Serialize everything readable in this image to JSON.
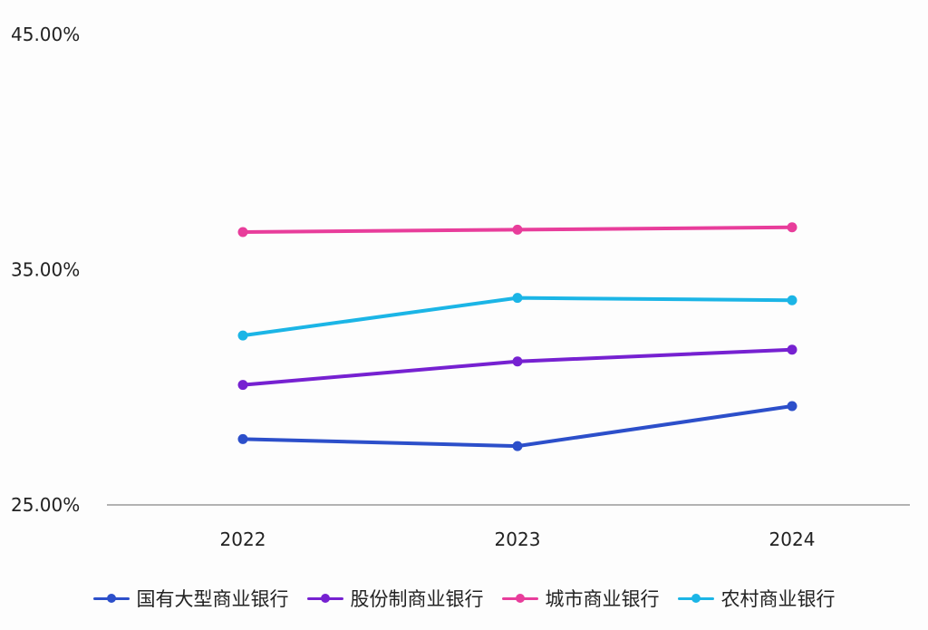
{
  "chart_data": {
    "type": "line",
    "categories": [
      "2022",
      "2023",
      "2024"
    ],
    "ylim": [
      25,
      45
    ],
    "y_ticks": [
      "25.00%",
      "35.00%",
      "45.00%"
    ],
    "grid": false,
    "legend_position": "bottom",
    "series": [
      {
        "name": "国有大型商业银行",
        "color": "#2c4fca",
        "values": [
          27.8,
          27.5,
          29.2
        ]
      },
      {
        "name": "股份制商业银行",
        "color": "#7621d1",
        "values": [
          30.1,
          31.1,
          31.6
        ]
      },
      {
        "name": "城市商业银行",
        "color": "#e83d9b",
        "values": [
          36.6,
          36.7,
          36.8
        ]
      },
      {
        "name": "农村商业银行",
        "color": "#1bb5e6",
        "values": [
          32.2,
          33.8,
          33.7
        ]
      }
    ]
  }
}
